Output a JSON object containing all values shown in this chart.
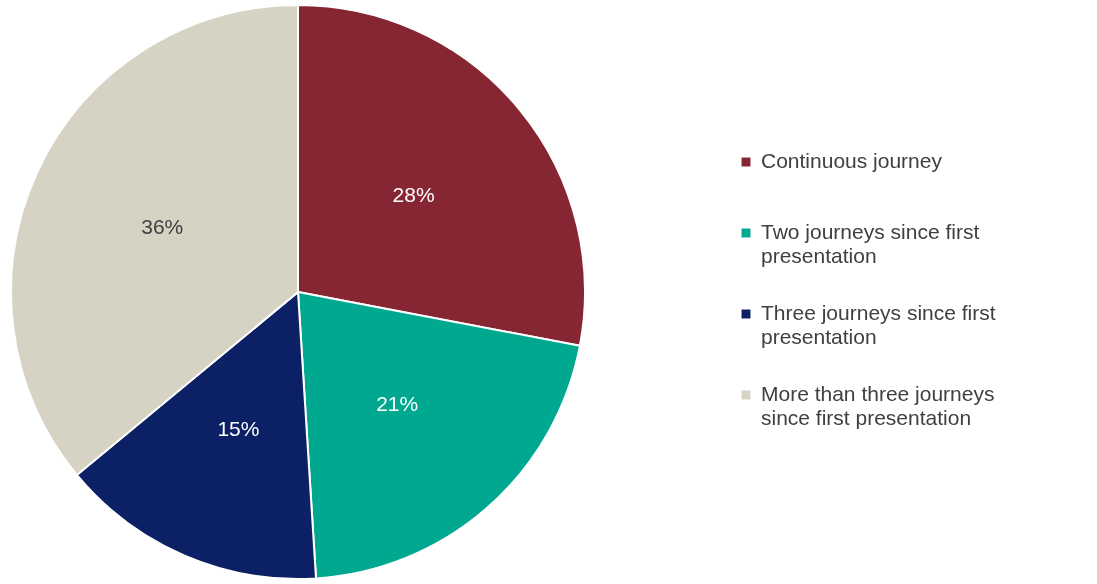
{
  "chart_data": {
    "type": "pie",
    "categories": [
      "Continuous journey",
      "Two journeys since first presentation",
      "Three journeys since first presentation",
      "More than three journeys since first presentation"
    ],
    "values": [
      28,
      21,
      15,
      36
    ],
    "colors": [
      "#862633",
      "#00a88f",
      "#0c2066",
      "#d6d2c4"
    ],
    "value_labels": [
      "28%",
      "21%",
      "15%",
      "36%"
    ],
    "legend": "right"
  }
}
